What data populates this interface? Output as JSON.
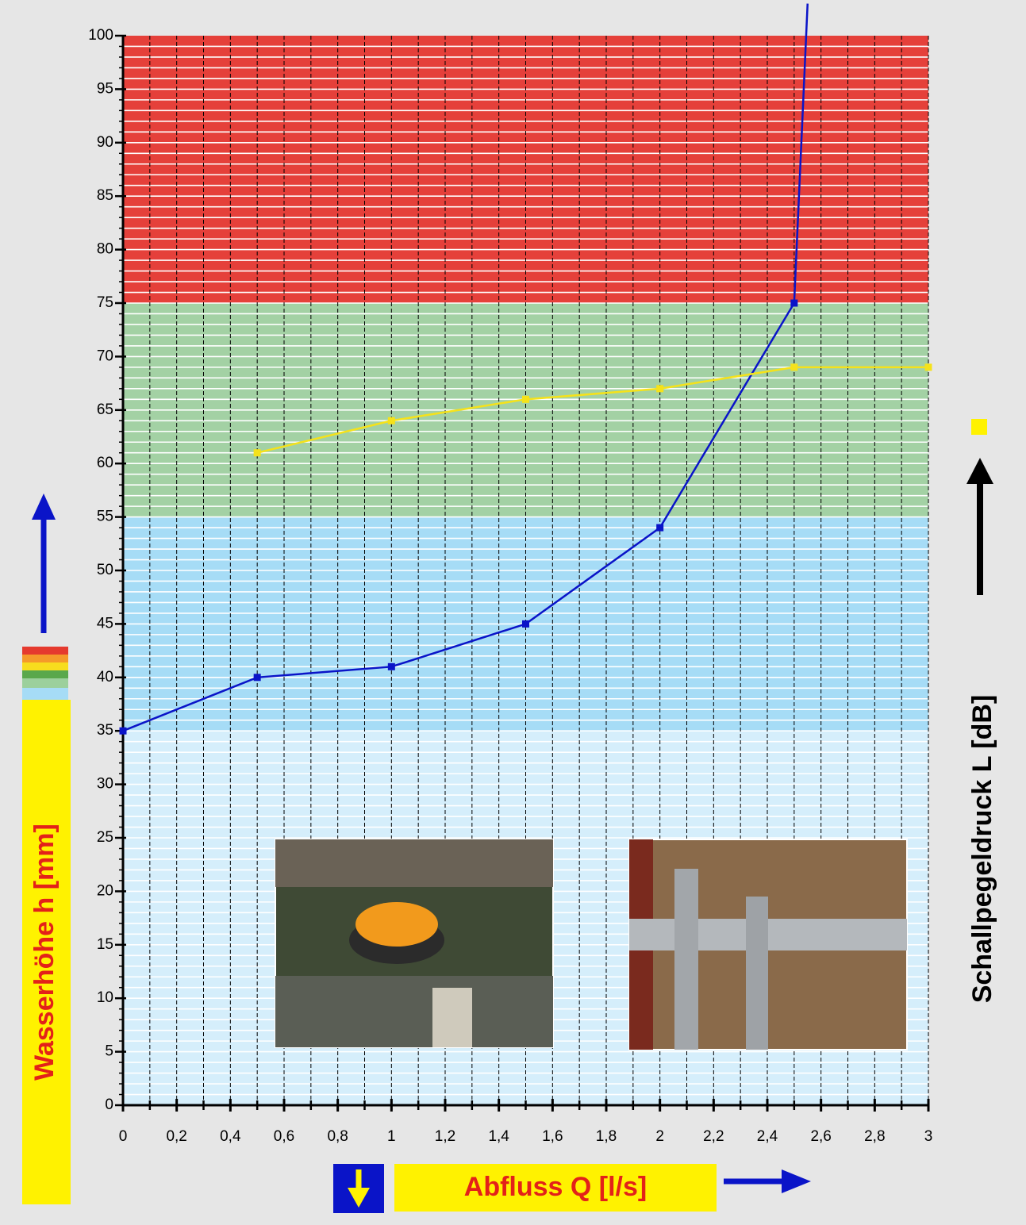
{
  "chart_data": {
    "type": "line",
    "y_axis_label": "Wasserhöhe h [mm]",
    "y2_axis_label": "Schallpegeldruck L [dB]",
    "x_axis_label": "Abfluss Q [l/s]",
    "xlim": [
      0,
      3
    ],
    "ylim": [
      0,
      100
    ],
    "xticks": [
      0,
      {
        "value": 0.2,
        "label": "0,2"
      },
      {
        "value": 0.4,
        "label": "0,4"
      },
      {
        "value": 0.6,
        "label": "0,6"
      },
      {
        "value": 0.8,
        "label": "0,8"
      },
      1,
      {
        "value": 1.2,
        "label": "1,2"
      },
      {
        "value": 1.4,
        "label": "1,4"
      },
      {
        "value": 1.6,
        "label": "1,6"
      },
      {
        "value": 1.8,
        "label": "1,8"
      },
      2,
      {
        "value": 2.2,
        "label": "2,2"
      },
      {
        "value": 2.4,
        "label": "2,4"
      },
      {
        "value": 2.6,
        "label": "2,6"
      },
      {
        "value": 2.8,
        "label": "2,8"
      },
      3
    ],
    "yticks": [
      0,
      5,
      10,
      15,
      20,
      25,
      30,
      35,
      40,
      45,
      50,
      55,
      60,
      65,
      70,
      75,
      80,
      85,
      90,
      95,
      100
    ],
    "x_minor_step": 0.1,
    "y_minor_step": 1,
    "bands": [
      {
        "from": 0,
        "to": 35,
        "color": "#d5eefb"
      },
      {
        "from": 35,
        "to": 55,
        "color": "#a6dcf6"
      },
      {
        "from": 55,
        "to": 75,
        "color": "#a3d1a4"
      },
      {
        "from": 75,
        "to": 100,
        "color": "#e5403a"
      }
    ],
    "series": [
      {
        "color": "#0a14c8",
        "x": [
          0,
          0.5,
          1,
          1.5,
          2,
          2.5,
          2.55
        ],
        "values": [
          35,
          40,
          41,
          45,
          54,
          75,
          103
        ]
      },
      {
        "color": "#f5e21a",
        "x": [
          0.5,
          1,
          1.5,
          2,
          2.5,
          3
        ],
        "values": [
          61,
          64,
          66,
          67,
          69,
          69
        ]
      }
    ]
  }
}
